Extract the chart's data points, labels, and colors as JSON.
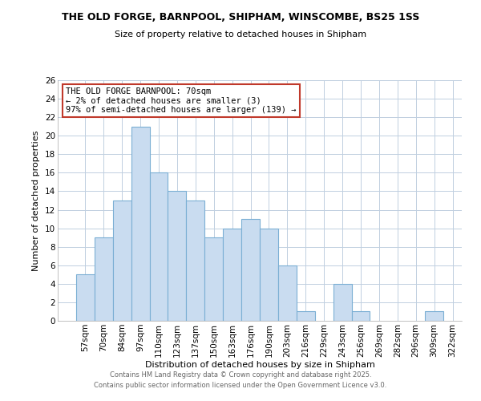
{
  "title_line1": "THE OLD FORGE, BARNPOOL, SHIPHAM, WINSCOMBE, BS25 1SS",
  "title_line2": "Size of property relative to detached houses in Shipham",
  "xlabel": "Distribution of detached houses by size in Shipham",
  "ylabel": "Number of detached properties",
  "bar_labels": [
    "57sqm",
    "70sqm",
    "84sqm",
    "97sqm",
    "110sqm",
    "123sqm",
    "137sqm",
    "150sqm",
    "163sqm",
    "176sqm",
    "190sqm",
    "203sqm",
    "216sqm",
    "229sqm",
    "243sqm",
    "256sqm",
    "269sqm",
    "282sqm",
    "296sqm",
    "309sqm",
    "322sqm"
  ],
  "bar_values": [
    5,
    9,
    13,
    21,
    16,
    14,
    13,
    9,
    10,
    11,
    10,
    6,
    1,
    0,
    4,
    1,
    0,
    0,
    0,
    1,
    0
  ],
  "bar_color": "#c9dcf0",
  "bar_edge_color": "#7bafd4",
  "highlight_bar_index": 1,
  "annotation_box_edge_color": "#c0392b",
  "ylim": [
    0,
    26
  ],
  "yticks": [
    0,
    2,
    4,
    6,
    8,
    10,
    12,
    14,
    16,
    18,
    20,
    22,
    24,
    26
  ],
  "annotation_title": "THE OLD FORGE BARNPOOL: 70sqm",
  "annotation_line1": "← 2% of detached houses are smaller (3)",
  "annotation_line2": "97% of semi-detached houses are larger (139) →",
  "footer_line1": "Contains HM Land Registry data © Crown copyright and database right 2025.",
  "footer_line2": "Contains public sector information licensed under the Open Government Licence v3.0.",
  "bg_color": "#ffffff",
  "grid_color": "#c0cfe0"
}
